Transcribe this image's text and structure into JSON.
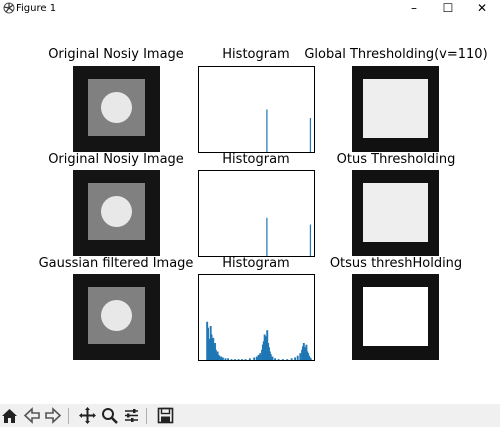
{
  "window": {
    "title": "Figure 1",
    "minimize": "–",
    "maximize": "☐",
    "close": "✕"
  },
  "subplots": [
    {
      "title": "Original Nosiy Image",
      "kind": "image"
    },
    {
      "title": "Histogram",
      "kind": "histogram"
    },
    {
      "title": "Global Thresholding(v=110)",
      "kind": "threshold"
    },
    {
      "title": "Original Nosiy Image",
      "kind": "image"
    },
    {
      "title": "Histogram",
      "kind": "histogram"
    },
    {
      "title": "Otus Thresholding",
      "kind": "threshold"
    },
    {
      "title": "Gaussian filtered Image",
      "kind": "image"
    },
    {
      "title": "Histogram",
      "kind": "histogram"
    },
    {
      "title": "Otsus threshHolding",
      "kind": "threshold"
    }
  ],
  "toolbar": {
    "icons": [
      "home-icon",
      "back-arrow-icon",
      "forward-arrow-icon",
      "pan-icon",
      "zoom-icon",
      "configure-subplots-icon",
      "save-icon"
    ]
  },
  "colors": {
    "histogram_bar": "#1f77b4",
    "image_dark": "#141414",
    "image_mid": "#808080",
    "image_light": "#e8e8e8",
    "toolbar_bg": "#f0f0f0"
  },
  "chart_data": [
    {
      "type": "bar",
      "title": "Histogram",
      "xlim": [
        0,
        255
      ],
      "x": [
        150,
        250
      ],
      "values": [
        0.5,
        0.4
      ]
    },
    {
      "type": "bar",
      "title": "Histogram",
      "xlim": [
        0,
        255
      ],
      "x": [
        150,
        250
      ],
      "values": [
        0.45,
        0.37
      ]
    },
    {
      "type": "bar",
      "title": "Histogram",
      "xlim": [
        0,
        255
      ],
      "x": [
        12,
        14,
        16,
        18,
        20,
        22,
        24,
        26,
        28,
        30,
        32,
        34,
        36,
        38,
        40,
        44,
        48,
        54,
        60,
        68,
        76,
        84,
        92,
        100,
        110,
        120,
        126,
        130,
        134,
        138,
        140,
        142,
        144,
        146,
        148,
        150,
        152,
        154,
        156,
        158,
        162,
        168,
        176,
        186,
        196,
        206,
        214,
        220,
        226,
        230,
        232,
        234,
        236,
        238,
        240,
        242,
        244,
        246,
        248,
        250
      ],
      "values": [
        0.45,
        0.38,
        0.22,
        0.25,
        0.4,
        0.3,
        0.2,
        0.26,
        0.15,
        0.2,
        0.12,
        0.08,
        0.1,
        0.06,
        0.05,
        0.04,
        0.03,
        0.02,
        0.02,
        0.01,
        0.01,
        0.01,
        0.01,
        0.01,
        0.02,
        0.03,
        0.04,
        0.06,
        0.08,
        0.12,
        0.18,
        0.22,
        0.3,
        0.28,
        0.25,
        0.35,
        0.2,
        0.15,
        0.1,
        0.07,
        0.04,
        0.02,
        0.01,
        0.01,
        0.01,
        0.02,
        0.03,
        0.05,
        0.08,
        0.12,
        0.16,
        0.2,
        0.15,
        0.12,
        0.18,
        0.1,
        0.08,
        0.05,
        0.03,
        0.02
      ]
    }
  ]
}
